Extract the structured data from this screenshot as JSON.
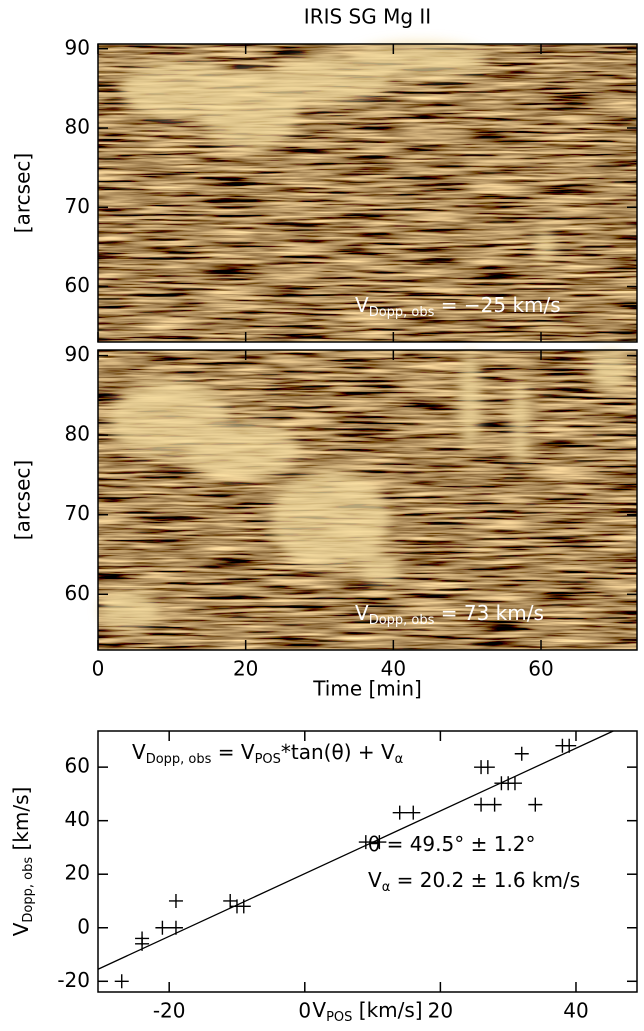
{
  "chart_data": [
    {
      "type": "image",
      "title": "IRIS SG Mg II",
      "ylabel": "[arcsec]",
      "annotation": [
        {
          "t": "V"
        },
        {
          "sub": "Dopp, obs"
        },
        {
          "t": " =   −25 km/s"
        }
      ],
      "xlim": [
        0,
        73
      ],
      "ylim": [
        53,
        90.6
      ],
      "xticks": [
        0,
        20,
        40,
        60
      ],
      "yticks": [
        60,
        70,
        80,
        90
      ],
      "xtick_labels": false
    },
    {
      "type": "image",
      "ylabel": "[arcsec]",
      "xlabel": "Time [min]",
      "annotation": [
        {
          "t": "V"
        },
        {
          "sub": "Dopp, obs"
        },
        {
          "t": " =    73 km/s"
        }
      ],
      "xlim": [
        0,
        73
      ],
      "ylim": [
        53,
        90.7
      ],
      "xticks": [
        0,
        20,
        40,
        60
      ],
      "yticks": [
        60,
        70,
        80,
        90
      ],
      "xtick_labels": true
    },
    {
      "type": "scatter",
      "color": "#000000",
      "xlabel": [
        {
          "t": "V"
        },
        {
          "sub": "POS"
        },
        {
          "t": " [km/s]"
        }
      ],
      "ylabel": [
        {
          "t": "V"
        },
        {
          "sub": "Dopp, obs"
        },
        {
          "t": " [km/s]"
        }
      ],
      "equation": [
        {
          "t": "V"
        },
        {
          "sub": "Dopp, obs"
        },
        {
          "t": " = V"
        },
        {
          "sub": "POS"
        },
        {
          "t": "*tan(θ) + V"
        },
        {
          "sub": "α"
        }
      ],
      "annotations": [
        [
          {
            "t": "θ = 49.5° ± 1.2°"
          }
        ],
        [
          {
            "t": "V"
          },
          {
            "sub": "α"
          },
          {
            "t": " = 20.2 ± 1.6 km/s"
          }
        ]
      ],
      "x": [
        -27,
        -24,
        -24,
        -21,
        -19,
        -19,
        -11,
        -10,
        -9,
        9,
        11,
        14,
        16,
        26,
        27,
        26,
        28,
        29,
        30,
        31,
        32,
        34,
        38,
        39
      ],
      "values": [
        -20,
        -6,
        -4,
        0,
        10,
        0,
        10,
        8,
        8,
        32,
        32,
        43,
        43,
        60,
        60,
        46,
        46,
        54,
        54,
        54,
        65,
        46,
        68,
        68
      ],
      "fit_line": {
        "x": [
          -30.5,
          45.5
        ],
        "values": [
          -15.5,
          73.5
        ]
      },
      "xlim": [
        -30.5,
        49
      ],
      "ylim": [
        -24,
        73.5
      ],
      "xticks": [
        -20,
        0,
        20,
        40
      ],
      "yticks": [
        -20,
        0,
        20,
        40,
        60
      ]
    }
  ]
}
